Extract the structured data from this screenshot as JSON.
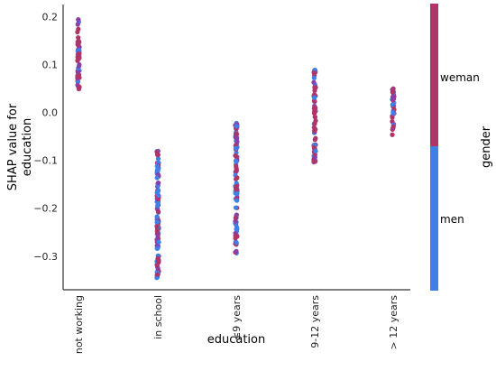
{
  "chart_data": {
    "type": "scatter",
    "title": "",
    "xlabel": "education",
    "ylabel_lines": [
      "SHAP value for",
      "education"
    ],
    "categories": [
      "not working",
      "in school",
      "≤9 years",
      "9-12 years",
      "> 12 years"
    ],
    "ylim": [
      -0.37,
      0.225
    ],
    "y_ticks": [
      0.2,
      0.1,
      0.0,
      -0.1,
      -0.2,
      -0.3
    ],
    "y_tick_labels": [
      "0.2",
      "0.1",
      "0.0",
      "−0.1",
      "−0.2",
      "−0.3"
    ],
    "grid": false,
    "colors": {
      "weman": "#b03468",
      "men": "#3f7fe9",
      "mixed": "#8a3fa8"
    },
    "series": [
      {
        "name": "weman",
        "colorbar_label": "weman"
      },
      {
        "name": "men",
        "colorbar_label": "men"
      }
    ],
    "colorbar_title": "gender",
    "category_ranges": [
      {
        "category": "not working",
        "y_min": 0.045,
        "y_max": 0.2
      },
      {
        "category": "in school",
        "y_min": -0.345,
        "y_max": -0.075
      },
      {
        "category": "≤9 years",
        "y_min": -0.295,
        "y_max": -0.02
      },
      {
        "category": "9-12 years",
        "y_min": -0.105,
        "y_max": 0.09
      },
      {
        "category": "> 12 years",
        "y_min": -0.05,
        "y_max": 0.05
      }
    ]
  }
}
